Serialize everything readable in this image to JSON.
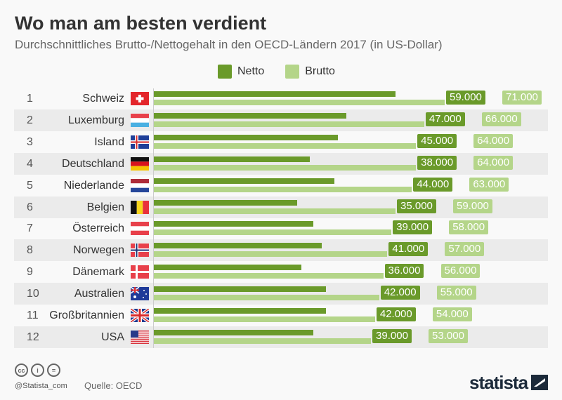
{
  "chart_data": {
    "type": "bar",
    "orientation": "horizontal",
    "title": "Wo man am besten verdient",
    "subtitle": "Durchschnittliches Brutto-/Nettogehalt in den OECD-Ländern 2017 (in US-Dollar)",
    "ranks": [
      "1",
      "2",
      "3",
      "4",
      "5",
      "6",
      "7",
      "8",
      "9",
      "10",
      "11",
      "12"
    ],
    "categories": [
      "Schweiz",
      "Luxemburg",
      "Island",
      "Deutschland",
      "Niederlande",
      "Belgien",
      "Österreich",
      "Norwegen",
      "Dänemark",
      "Australien",
      "Großbritannien",
      "USA"
    ],
    "flags": [
      "ch-flag",
      "lu-flag",
      "is-flag",
      "de-flag",
      "nl-flag",
      "be-flag",
      "at-flag",
      "no-flag",
      "dk-flag",
      "au-flag",
      "gb-flag",
      "us-flag"
    ],
    "series": [
      {
        "name": "Netto",
        "color": "#6a9a2a",
        "values": [
          59000,
          47000,
          45000,
          38000,
          44000,
          35000,
          39000,
          41000,
          36000,
          42000,
          42000,
          39000
        ],
        "labels": [
          "59.000",
          "47.000",
          "45.000",
          "38.000",
          "44.000",
          "35.000",
          "39.000",
          "41.000",
          "36.000",
          "42.000",
          "42.000",
          "39.000"
        ]
      },
      {
        "name": "Brutto",
        "color": "#b4d589",
        "values": [
          71000,
          66000,
          64000,
          64000,
          63000,
          59000,
          58000,
          57000,
          56000,
          55000,
          54000,
          53000
        ],
        "labels": [
          "71.000",
          "66.000",
          "64.000",
          "64.000",
          "63.000",
          "59.000",
          "58.000",
          "57.000",
          "56.000",
          "55.000",
          "54.000",
          "53.000"
        ]
      }
    ],
    "xlim": [
      0,
      71000
    ],
    "legend": "top-center",
    "grid": false
  },
  "footer": {
    "handle": "@Statista_com",
    "source": "Quelle: OECD",
    "logo": "statista",
    "license_icons": [
      "cc",
      "by",
      "nd"
    ]
  }
}
